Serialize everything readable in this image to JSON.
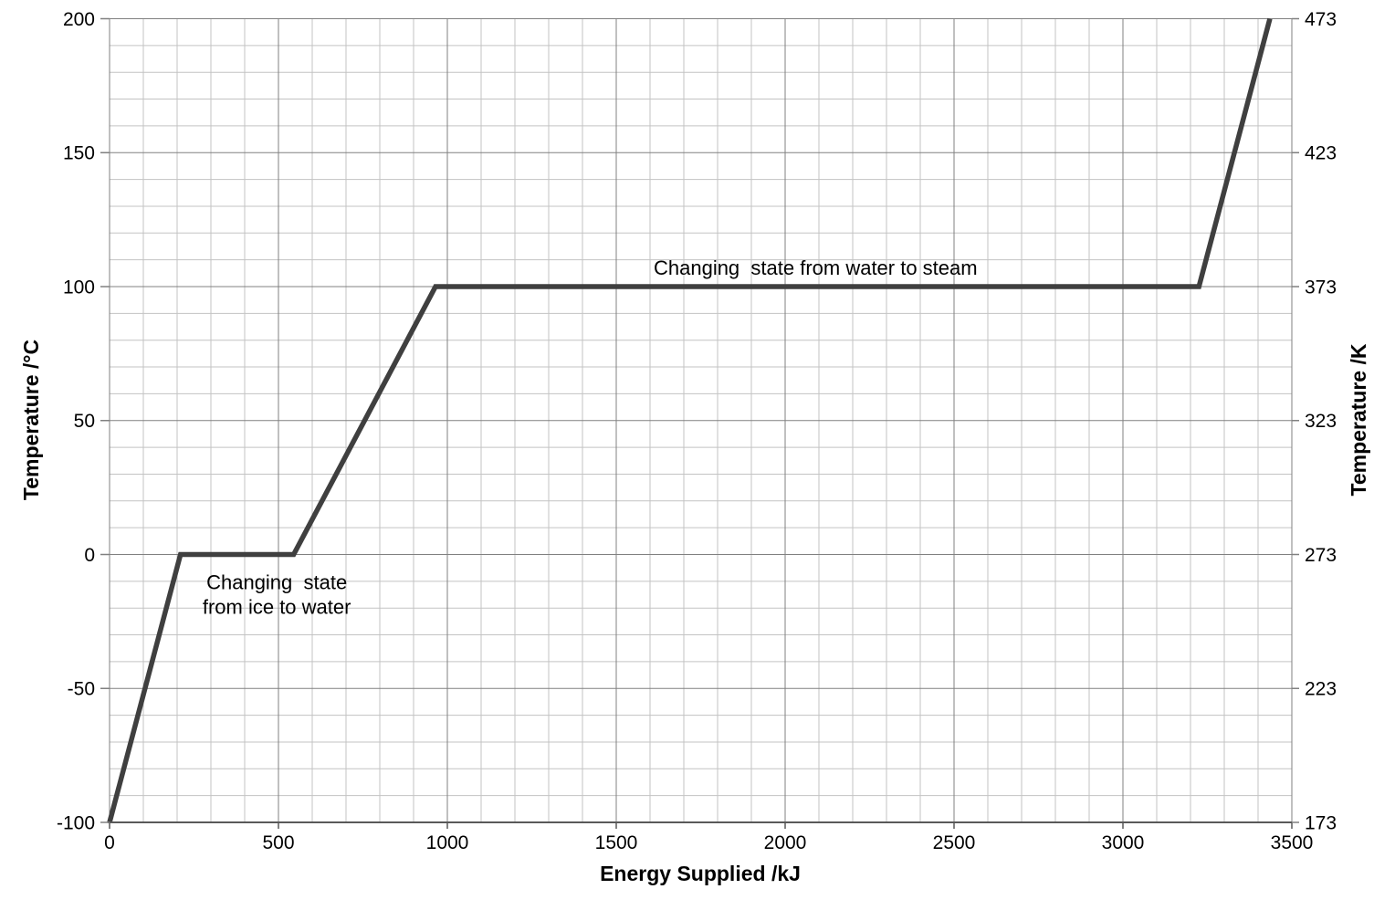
{
  "chart_data": {
    "type": "line",
    "title": "",
    "xlabel": "Energy Supplied /kJ",
    "ylabel_left": "Temperature /°C",
    "ylabel_right": "Temperature /K",
    "xlim": [
      0,
      3500
    ],
    "ylim_celsius": [
      -100,
      200
    ],
    "ylim_kelvin": [
      173,
      473
    ],
    "x_ticks": [
      0,
      500,
      1000,
      1500,
      2000,
      2500,
      3000,
      3500
    ],
    "y_ticks_celsius": [
      200,
      150,
      100,
      50,
      0,
      -50,
      -100
    ],
    "y_ticks_kelvin": [
      473,
      423,
      373,
      323,
      273,
      223,
      173
    ],
    "grid": {
      "visible": true,
      "minor_x_step_kj": 100,
      "minor_y_step_c": 10,
      "major_x_step_kj": 500,
      "major_y_step_c": 50
    },
    "legend": "none",
    "series": [
      {
        "name": "heating-curve-of-water",
        "points": [
          [
            0,
            -100
          ],
          [
            210,
            0
          ],
          [
            545,
            0
          ],
          [
            965,
            100
          ],
          [
            3225,
            100
          ],
          [
            3435,
            200
          ]
        ],
        "color": "#3f3f3f",
        "stroke_width": 5.5
      }
    ],
    "annotations": [
      {
        "name": "water-to-steam",
        "lines": [
          "Changing  state from water to steam"
        ],
        "x_kj": 2090,
        "y_c": 107
      },
      {
        "name": "ice-to-water",
        "lines": [
          "Changing  state",
          "from ice to water"
        ],
        "x_kj": 495,
        "y_c": -15
      }
    ],
    "colors": {
      "background": "#ffffff",
      "series": "#3f3f3f",
      "major_grid": "#808080",
      "minor_grid": "#c3c3c3",
      "axis_line": "#595959",
      "text": "#000000"
    }
  }
}
